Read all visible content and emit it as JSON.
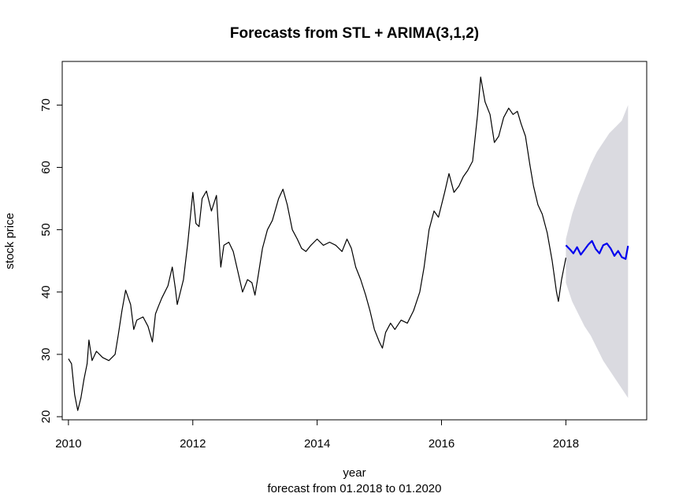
{
  "chart_data": {
    "type": "line",
    "title": "Forecasts from STL +  ARIMA(3,1,2)",
    "xlabel": "year",
    "subtitle": "forecast from 01.2018 to 01.2020",
    "ylabel": "stock price",
    "xlim": [
      2009.9,
      2019.3
    ],
    "ylim": [
      19.5,
      77
    ],
    "x_ticks": [
      2010,
      2012,
      2014,
      2016,
      2018
    ],
    "y_ticks": [
      20,
      30,
      40,
      50,
      60,
      70
    ],
    "grid": false,
    "legend": "none",
    "series": [
      {
        "role": "observed",
        "color": "#000000",
        "points": [
          [
            2010.0,
            29.3
          ],
          [
            2010.05,
            28.5
          ],
          [
            2010.1,
            23.5
          ],
          [
            2010.15,
            21.0
          ],
          [
            2010.2,
            23.0
          ],
          [
            2010.25,
            26.0
          ],
          [
            2010.3,
            28.5
          ],
          [
            2010.33,
            32.3
          ],
          [
            2010.38,
            29.0
          ],
          [
            2010.45,
            30.5
          ],
          [
            2010.55,
            29.5
          ],
          [
            2010.65,
            29.0
          ],
          [
            2010.75,
            30.0
          ],
          [
            2010.8,
            33.0
          ],
          [
            2010.86,
            37.0
          ],
          [
            2010.92,
            40.3
          ],
          [
            2011.0,
            38.0
          ],
          [
            2011.05,
            34.0
          ],
          [
            2011.1,
            35.5
          ],
          [
            2011.2,
            36.0
          ],
          [
            2011.28,
            34.5
          ],
          [
            2011.35,
            32.0
          ],
          [
            2011.4,
            36.5
          ],
          [
            2011.45,
            37.8
          ],
          [
            2011.5,
            39.0
          ],
          [
            2011.6,
            41.0
          ],
          [
            2011.67,
            44.0
          ],
          [
            2011.72,
            40.5
          ],
          [
            2011.75,
            38.0
          ],
          [
            2011.85,
            42.0
          ],
          [
            2011.92,
            48.0
          ],
          [
            2011.97,
            53.0
          ],
          [
            2012.0,
            56.0
          ],
          [
            2012.05,
            51.0
          ],
          [
            2012.1,
            50.5
          ],
          [
            2012.15,
            55.0
          ],
          [
            2012.22,
            56.2
          ],
          [
            2012.3,
            53.0
          ],
          [
            2012.38,
            55.5
          ],
          [
            2012.45,
            44.0
          ],
          [
            2012.5,
            47.5
          ],
          [
            2012.58,
            48.0
          ],
          [
            2012.65,
            46.5
          ],
          [
            2012.72,
            43.5
          ],
          [
            2012.8,
            40.0
          ],
          [
            2012.88,
            42.0
          ],
          [
            2012.95,
            41.5
          ],
          [
            2013.0,
            39.5
          ],
          [
            2013.05,
            42.5
          ],
          [
            2013.12,
            47.0
          ],
          [
            2013.2,
            50.0
          ],
          [
            2013.28,
            51.5
          ],
          [
            2013.38,
            55.0
          ],
          [
            2013.45,
            56.5
          ],
          [
            2013.52,
            54.0
          ],
          [
            2013.6,
            50.0
          ],
          [
            2013.68,
            48.5
          ],
          [
            2013.75,
            47.0
          ],
          [
            2013.82,
            46.5
          ],
          [
            2013.9,
            47.5
          ],
          [
            2014.0,
            48.5
          ],
          [
            2014.1,
            47.5
          ],
          [
            2014.2,
            48.0
          ],
          [
            2014.3,
            47.5
          ],
          [
            2014.4,
            46.5
          ],
          [
            2014.48,
            48.5
          ],
          [
            2014.55,
            47.0
          ],
          [
            2014.62,
            44.0
          ],
          [
            2014.7,
            42.0
          ],
          [
            2014.78,
            39.5
          ],
          [
            2014.85,
            37.0
          ],
          [
            2014.92,
            34.0
          ],
          [
            2015.0,
            32.0
          ],
          [
            2015.05,
            31.0
          ],
          [
            2015.1,
            33.5
          ],
          [
            2015.18,
            35.0
          ],
          [
            2015.25,
            34.0
          ],
          [
            2015.35,
            35.5
          ],
          [
            2015.45,
            35.0
          ],
          [
            2015.55,
            37.0
          ],
          [
            2015.65,
            40.0
          ],
          [
            2015.72,
            44.0
          ],
          [
            2015.8,
            50.0
          ],
          [
            2015.88,
            53.0
          ],
          [
            2015.95,
            52.0
          ],
          [
            2016.05,
            56.0
          ],
          [
            2016.12,
            59.0
          ],
          [
            2016.2,
            56.0
          ],
          [
            2016.28,
            57.0
          ],
          [
            2016.35,
            58.5
          ],
          [
            2016.42,
            59.5
          ],
          [
            2016.5,
            61.0
          ],
          [
            2016.58,
            68.5
          ],
          [
            2016.63,
            74.5
          ],
          [
            2016.7,
            70.5
          ],
          [
            2016.78,
            68.5
          ],
          [
            2016.85,
            64.0
          ],
          [
            2016.92,
            65.0
          ],
          [
            2017.0,
            68.0
          ],
          [
            2017.08,
            69.5
          ],
          [
            2017.15,
            68.5
          ],
          [
            2017.22,
            69.0
          ],
          [
            2017.28,
            67.0
          ],
          [
            2017.35,
            65.0
          ],
          [
            2017.42,
            60.5
          ],
          [
            2017.48,
            57.0
          ],
          [
            2017.55,
            54.0
          ],
          [
            2017.62,
            52.5
          ],
          [
            2017.7,
            49.5
          ],
          [
            2017.78,
            45.0
          ],
          [
            2017.85,
            40.0
          ],
          [
            2017.88,
            38.5
          ],
          [
            2017.93,
            42.0
          ],
          [
            2018.0,
            45.5
          ]
        ]
      },
      {
        "role": "point forecast",
        "color": "#0000ee",
        "points": [
          [
            2018.0,
            47.5
          ],
          [
            2018.07,
            46.8
          ],
          [
            2018.12,
            46.2
          ],
          [
            2018.18,
            47.2
          ],
          [
            2018.24,
            46.0
          ],
          [
            2018.3,
            46.8
          ],
          [
            2018.36,
            47.6
          ],
          [
            2018.42,
            48.2
          ],
          [
            2018.48,
            46.9
          ],
          [
            2018.54,
            46.2
          ],
          [
            2018.6,
            47.5
          ],
          [
            2018.66,
            47.8
          ],
          [
            2018.72,
            47.0
          ],
          [
            2018.78,
            45.8
          ],
          [
            2018.84,
            46.6
          ],
          [
            2018.9,
            45.6
          ],
          [
            2018.96,
            45.3
          ],
          [
            2019.0,
            47.4
          ]
        ]
      }
    ],
    "interval": {
      "color": "#dadae0",
      "upper": [
        [
          2018.0,
          48.5
        ],
        [
          2018.1,
          52.5
        ],
        [
          2018.2,
          55.5
        ],
        [
          2018.3,
          58.0
        ],
        [
          2018.4,
          60.5
        ],
        [
          2018.5,
          62.5
        ],
        [
          2018.6,
          64.0
        ],
        [
          2018.7,
          65.5
        ],
        [
          2018.8,
          66.5
        ],
        [
          2018.9,
          67.5
        ],
        [
          2019.0,
          70.0
        ]
      ],
      "lower": [
        [
          2018.0,
          41.5
        ],
        [
          2018.1,
          38.5
        ],
        [
          2018.2,
          36.5
        ],
        [
          2018.3,
          34.5
        ],
        [
          2018.4,
          33.0
        ],
        [
          2018.5,
          31.0
        ],
        [
          2018.6,
          29.0
        ],
        [
          2018.7,
          27.5
        ],
        [
          2018.8,
          26.0
        ],
        [
          2018.9,
          24.5
        ],
        [
          2019.0,
          23.0
        ]
      ]
    }
  }
}
